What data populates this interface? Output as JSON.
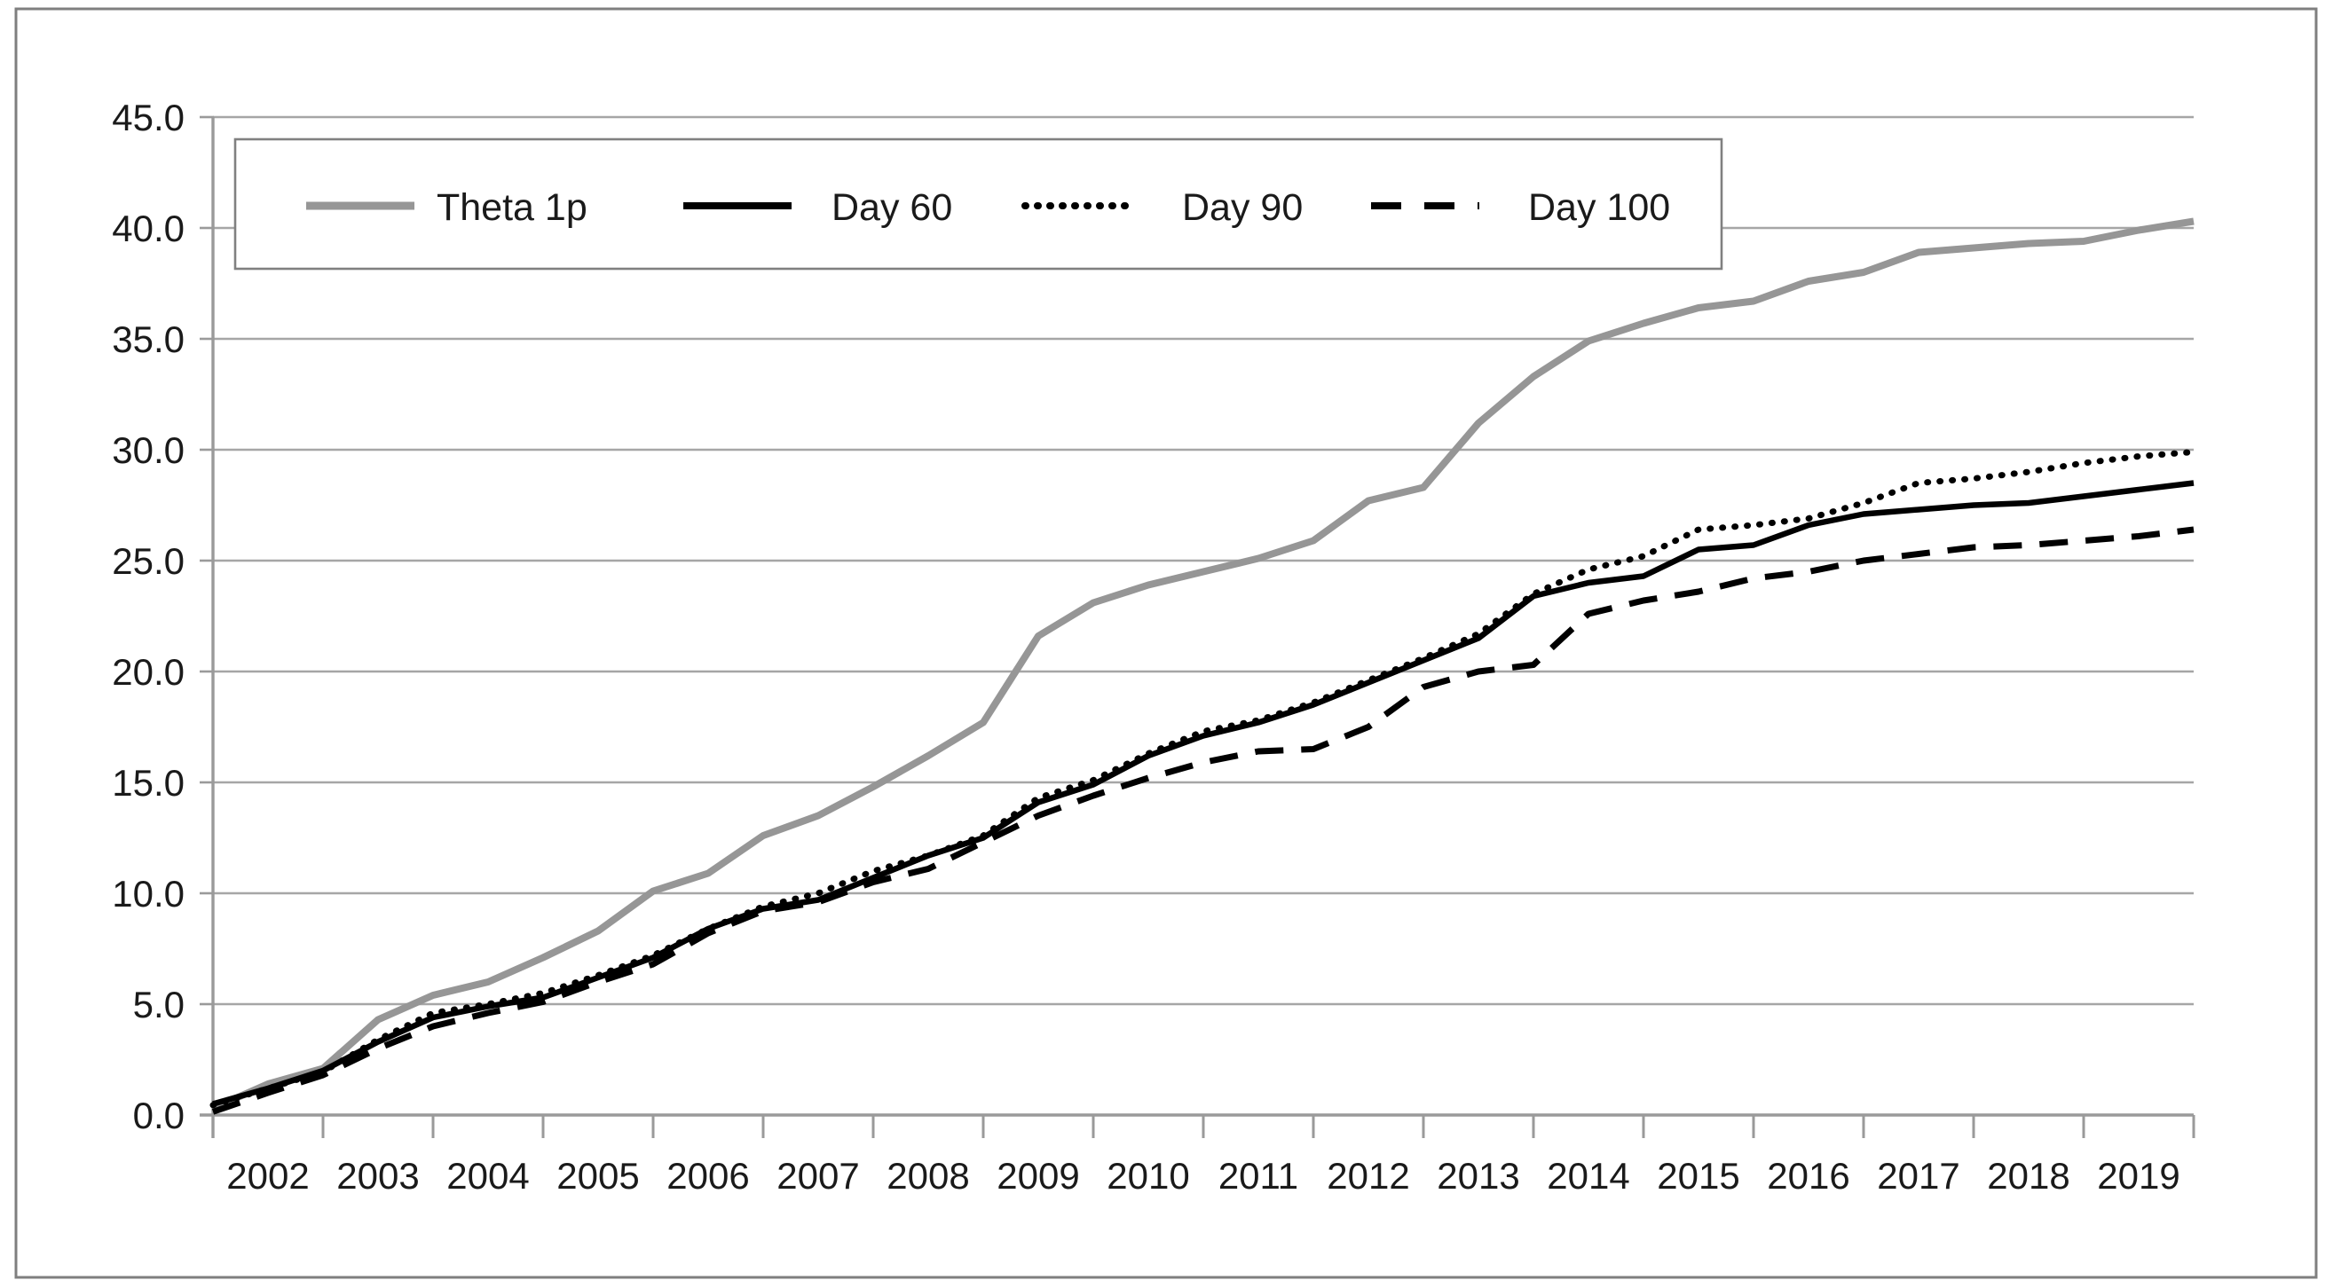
{
  "figure": {
    "background_color": "#ffffff",
    "outer_border_color": "#7f7f7f",
    "gridline_color": "#a6a6a6",
    "axis_color": "#9a9a9a",
    "legend_border_color": "#808080"
  },
  "chart_data": {
    "type": "line",
    "title": "",
    "xlabel": "",
    "ylabel": "",
    "grid": true,
    "x_axis": {
      "range": [
        2002,
        2020
      ],
      "tick_labels": [
        "2002",
        "2003",
        "2004",
        "2005",
        "2006",
        "2007",
        "2008",
        "2009",
        "2010",
        "2011",
        "2012",
        "2013",
        "2014",
        "2015",
        "2016",
        "2017",
        "2018",
        "2019"
      ]
    },
    "y_axis": {
      "range": [
        0,
        45
      ],
      "tick_values": [
        45,
        40,
        35,
        30,
        25,
        20,
        15,
        10,
        5,
        0
      ],
      "tick_labels": [
        "45.0",
        "40.0",
        "35.0",
        "30.0",
        "25.0",
        "20.0",
        "15.0",
        "10.0",
        "5.0",
        "0.0"
      ]
    },
    "legend": {
      "position": "top-left-inside",
      "entries": [
        {
          "label": "Theta 1p",
          "style": "solid",
          "color": "#969696"
        },
        {
          "label": "Day 60",
          "style": "solid",
          "color": "#000000"
        },
        {
          "label": "Day 90",
          "style": "dotted",
          "color": "#000000"
        },
        {
          "label": "Day 100",
          "style": "dashed",
          "color": "#000000"
        }
      ]
    },
    "x": [
      2002,
      2002.5,
      2003,
      2003.5,
      2004,
      2004.5,
      2005,
      2005.5,
      2006,
      2006.5,
      2007,
      2007.5,
      2008,
      2008.5,
      2009,
      2009.5,
      2010,
      2010.5,
      2011,
      2011.5,
      2012,
      2012.5,
      2013,
      2013.5,
      2014,
      2014.5,
      2015,
      2015.5,
      2016,
      2016.5,
      2017,
      2017.5,
      2018,
      2018.5,
      2019,
      2019.5,
      2020
    ],
    "series": [
      {
        "name": "Theta 1p",
        "color": "#969696",
        "style": "solid",
        "stroke_width": 8,
        "values": [
          0.3,
          1.4,
          2.1,
          4.3,
          5.4,
          6.0,
          7.1,
          8.3,
          10.1,
          10.9,
          12.6,
          13.5,
          14.8,
          16.2,
          17.7,
          21.6,
          23.1,
          23.9,
          24.5,
          25.1,
          25.9,
          27.7,
          28.3,
          31.2,
          33.3,
          34.9,
          35.7,
          36.4,
          36.7,
          37.6,
          38.0,
          38.9,
          39.1,
          39.3,
          39.4,
          39.9,
          40.3
        ]
      },
      {
        "name": "Day 60",
        "color": "#000000",
        "style": "solid",
        "stroke_width": 6.5,
        "values": [
          0.5,
          1.2,
          2.0,
          3.3,
          4.4,
          4.9,
          5.3,
          6.2,
          7.1,
          8.4,
          9.3,
          9.7,
          10.7,
          11.7,
          12.5,
          14.1,
          14.9,
          16.2,
          17.1,
          17.7,
          18.5,
          19.5,
          20.5,
          21.5,
          23.4,
          24.0,
          24.3,
          25.5,
          25.7,
          26.6,
          27.1,
          27.3,
          27.5,
          27.6,
          27.9,
          28.2,
          28.5
        ]
      },
      {
        "name": "Day 90",
        "color": "#000000",
        "style": "dotted",
        "stroke_width": 7,
        "values": [
          0.45,
          1.2,
          1.95,
          3.4,
          4.6,
          5.0,
          5.5,
          6.3,
          7.2,
          8.4,
          9.4,
          10.0,
          11.0,
          11.7,
          12.6,
          14.3,
          15.1,
          16.3,
          17.3,
          17.8,
          18.6,
          19.6,
          20.6,
          21.7,
          23.5,
          24.6,
          25.2,
          26.4,
          26.6,
          26.9,
          27.6,
          28.5,
          28.7,
          29.0,
          29.4,
          29.7,
          29.9
        ]
      },
      {
        "name": "Day 100",
        "color": "#000000",
        "style": "dashed",
        "stroke_width": 7,
        "values": [
          0.15,
          1.0,
          1.8,
          3.0,
          4.0,
          4.6,
          5.1,
          6.0,
          6.8,
          8.2,
          9.2,
          9.6,
          10.5,
          11.1,
          12.3,
          13.5,
          14.4,
          15.2,
          15.9,
          16.4,
          16.5,
          17.5,
          19.3,
          20.0,
          20.3,
          22.6,
          23.2,
          23.6,
          24.2,
          24.5,
          25.0,
          25.3,
          25.6,
          25.7,
          25.9,
          26.1,
          26.4
        ]
      }
    ]
  }
}
